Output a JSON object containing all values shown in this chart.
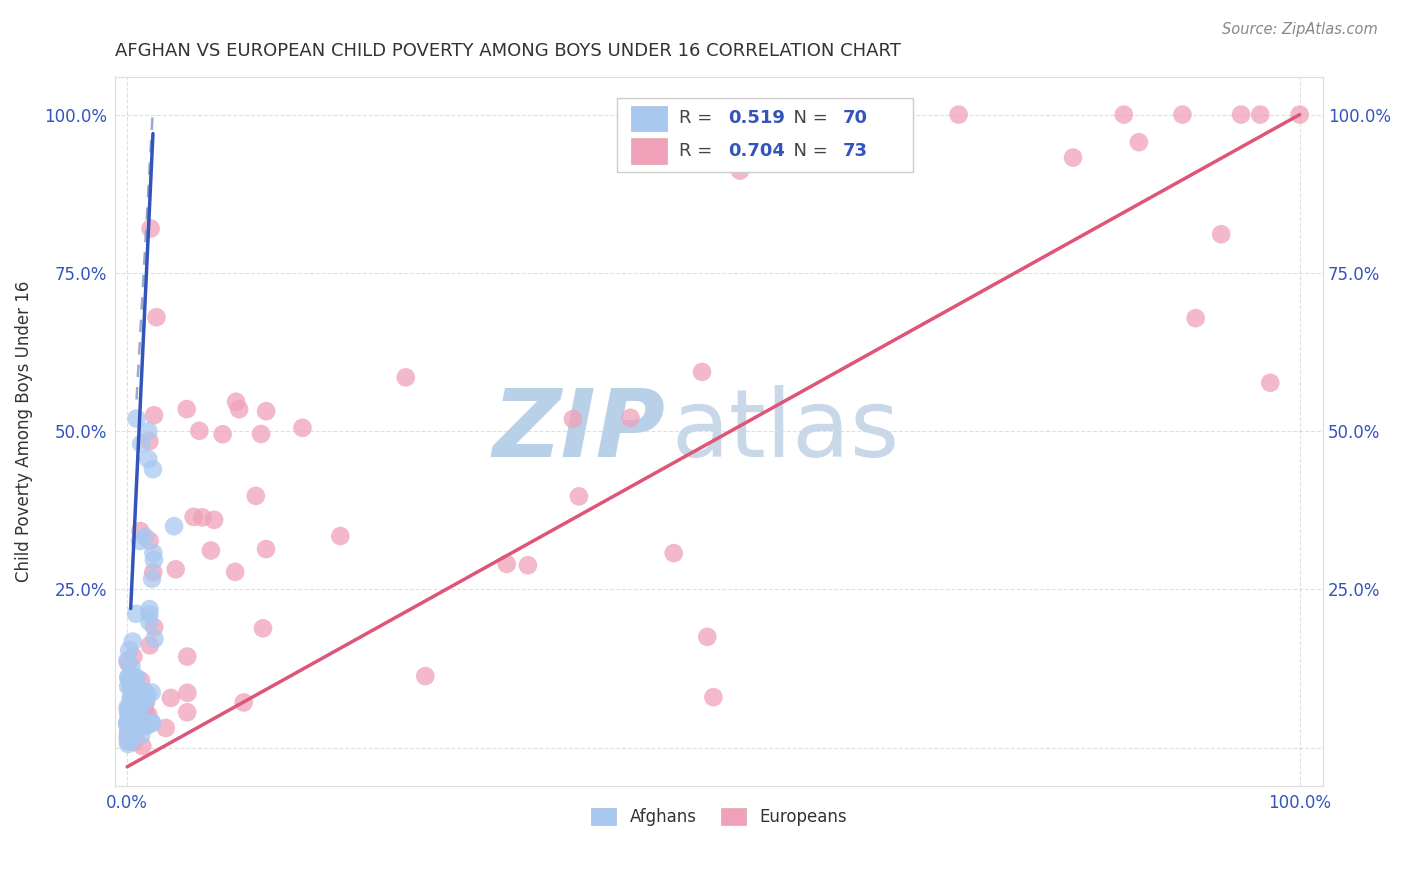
{
  "title": "AFGHAN VS EUROPEAN CHILD POVERTY AMONG BOYS UNDER 16 CORRELATION CHART",
  "source": "Source: ZipAtlas.com",
  "ylabel": "Child Poverty Among Boys Under 16",
  "afghan_R": "0.519",
  "afghan_N": "70",
  "european_R": "0.704",
  "european_N": "73",
  "afghan_color": "#A8C8F0",
  "afghan_line_color": "#3355BB",
  "afghan_dash_color": "#99AACC",
  "european_color": "#F0A0B8",
  "european_line_color": "#DD5577",
  "watermark_zip_color": "#B8D0E8",
  "watermark_atlas_color": "#C8D8E8",
  "background_color": "#FFFFFF",
  "grid_color": "#CCCCCC",
  "legend_text_color": "#444444",
  "legend_value_color": "#3355BB",
  "title_color": "#333333",
  "source_color": "#888888",
  "axis_tick_color": "#3355BB"
}
